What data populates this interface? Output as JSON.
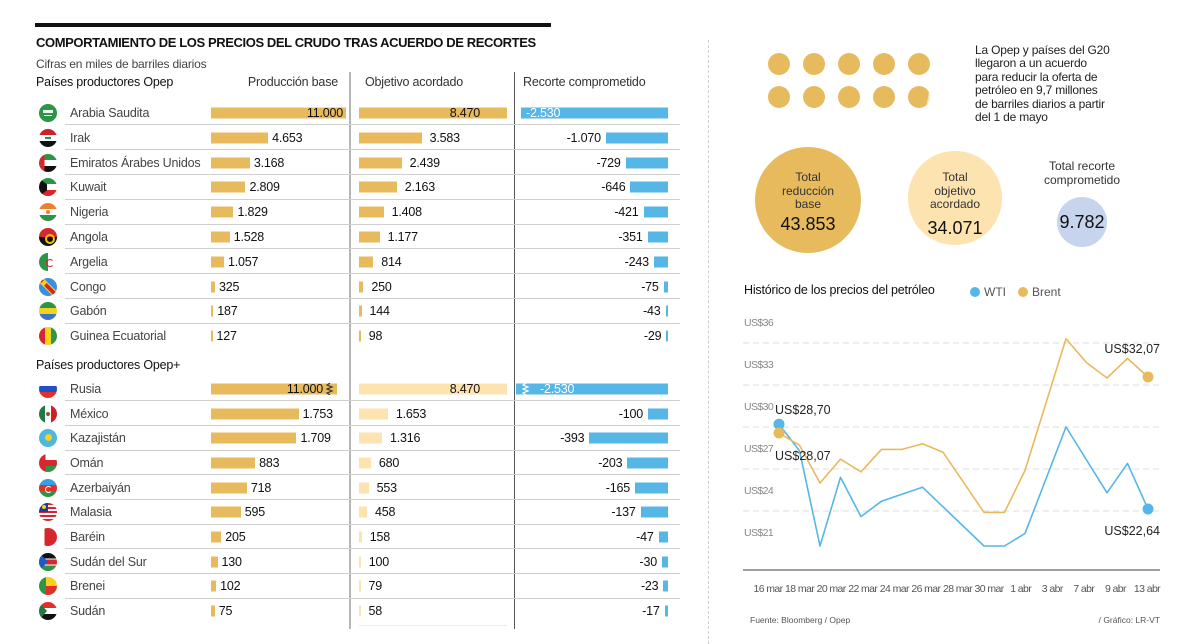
{
  "colors": {
    "gold": "#E8BA5E",
    "light": "#FDE3B0",
    "blue": "#56B7E6",
    "pale": "#C6D4EE"
  },
  "chart_data": [
    {
      "type": "bar",
      "title": "COMPORTAMIENTO DE LOS PRECIOS DEL CRUDO TRAS ACUERDO DE RECORTES",
      "subtitle": "Cifras en miles de barriles diarios",
      "columns": {
        "production": "Producción base",
        "target": "Objetivo acordado",
        "cut": "Recorte comprometido"
      },
      "sections": [
        {
          "name": "Países productores Opep",
          "rows": [
            {
              "country": "Arabia Saudita",
              "flag_icon": "flag-sa-icon",
              "production": 11000,
              "production_label": "11.000",
              "target": 8470,
              "target_label": "8.470",
              "cut": -2530,
              "cut_label": "-2.530"
            },
            {
              "country": "Irak",
              "flag_icon": "flag-iq-icon",
              "production": 4653,
              "production_label": "4.653",
              "target": 3583,
              "target_label": "3.583",
              "cut": -1070,
              "cut_label": "-1.070"
            },
            {
              "country": "Emiratos Árabes Unidos",
              "flag_icon": "flag-ae-icon",
              "production": 3168,
              "production_label": "3.168",
              "target": 2439,
              "target_label": "2.439",
              "cut": -729,
              "cut_label": "-729"
            },
            {
              "country": "Kuwait",
              "flag_icon": "flag-kw-icon",
              "production": 2809,
              "production_label": "2.809",
              "target": 2163,
              "target_label": "2.163",
              "cut": -646,
              "cut_label": "-646"
            },
            {
              "country": "Nigeria",
              "flag_icon": "flag-ne-icon",
              "production": 1829,
              "production_label": "1.829",
              "target": 1408,
              "target_label": "1.408",
              "cut": -421,
              "cut_label": "-421"
            },
            {
              "country": "Angola",
              "flag_icon": "flag-ao-icon",
              "production": 1528,
              "production_label": "1.528",
              "target": 1177,
              "target_label": "1.177",
              "cut": -351,
              "cut_label": "-351"
            },
            {
              "country": "Argelia",
              "flag_icon": "flag-dz-icon",
              "production": 1057,
              "production_label": "1.057",
              "target": 814,
              "target_label": "814",
              "cut": -243,
              "cut_label": "-243"
            },
            {
              "country": "Congo",
              "flag_icon": "flag-cd-icon",
              "production": 325,
              "production_label": "325",
              "target": 250,
              "target_label": "250",
              "cut": -75,
              "cut_label": "-75"
            },
            {
              "country": "Gabón",
              "flag_icon": "flag-ga-icon",
              "production": 187,
              "production_label": "187",
              "target": 144,
              "target_label": "144",
              "cut": -43,
              "cut_label": "-43"
            },
            {
              "country": "Guinea Ecuatorial",
              "flag_icon": "flag-gq-icon",
              "production": 127,
              "production_label": "127",
              "target": 98,
              "target_label": "98",
              "cut": -29,
              "cut_label": "-29"
            }
          ]
        },
        {
          "name": "Países productores Opep+",
          "rows": [
            {
              "country": "Rusia",
              "flag_icon": "flag-ru-icon",
              "production": 11000,
              "production_label": "11.000",
              "target": 8470,
              "target_label": "8.470",
              "cut": -2530,
              "cut_label": "-2.530"
            },
            {
              "country": "México",
              "flag_icon": "flag-mx-icon",
              "production": 1753,
              "production_label": "1.753",
              "target": 1653,
              "target_label": "1.653",
              "cut": -100,
              "cut_label": "-100"
            },
            {
              "country": "Kazajistán",
              "flag_icon": "flag-kz-icon",
              "production": 1709,
              "production_label": "1.709",
              "target": 1316,
              "target_label": "1.316",
              "cut": -393,
              "cut_label": "-393"
            },
            {
              "country": "Omán",
              "flag_icon": "flag-om-icon",
              "production": 883,
              "production_label": "883",
              "target": 680,
              "target_label": "680",
              "cut": -203,
              "cut_label": "-203"
            },
            {
              "country": "Azerbaiyán",
              "flag_icon": "flag-az-icon",
              "production": 718,
              "production_label": "718",
              "target": 553,
              "target_label": "553",
              "cut": -165,
              "cut_label": "-165"
            },
            {
              "country": "Malasia",
              "flag_icon": "flag-my-icon",
              "production": 595,
              "production_label": "595",
              "target": 458,
              "target_label": "458",
              "cut": -137,
              "cut_label": "-137"
            },
            {
              "country": "Baréin",
              "flag_icon": "flag-bh-icon",
              "production": 205,
              "production_label": "205",
              "target": 158,
              "target_label": "158",
              "cut": -47,
              "cut_label": "-47"
            },
            {
              "country": "Sudán del Sur",
              "flag_icon": "flag-ss-icon",
              "production": 130,
              "production_label": "130",
              "target": 100,
              "target_label": "100",
              "cut": -30,
              "cut_label": "-30"
            },
            {
              "country": "Brenei",
              "flag_icon": "flag-bj-icon",
              "production": 102,
              "production_label": "102",
              "target": 79,
              "target_label": "79",
              "cut": -23,
              "cut_label": "-23"
            },
            {
              "country": "Sudán",
              "flag_icon": "flag-sd-icon",
              "production": 75,
              "production_label": "75",
              "target": 58,
              "target_label": "58",
              "cut": -17,
              "cut_label": "-17"
            }
          ]
        }
      ]
    },
    {
      "type": "line",
      "title": "Histórico de los precios del petróleo",
      "xlabel": "",
      "ylabel": "",
      "legend": {
        "position": "top-right",
        "entries": [
          {
            "label": "WTI"
          },
          {
            "label": "Brent"
          }
        ]
      },
      "x_tick_labels": [
        "16 mar",
        "18 mar",
        "20 mar",
        "22 mar",
        "24 mar",
        "26 mar",
        "28 mar",
        "30 mar",
        "1 abr",
        "3 abr",
        "7 abr",
        "9 abr",
        "13 abr"
      ],
      "y_ticks": [
        36,
        33,
        30,
        27,
        24,
        21
      ],
      "y_tick_labels": [
        "US$36",
        "US$33",
        "US$30",
        "US$27",
        "US$24",
        "US$21"
      ],
      "ylim": [
        18.4,
        37
      ],
      "grid": "dashed horizontal",
      "series": [
        {
          "name": "WTI",
          "color": "#56B7E6",
          "values": [
            28.7,
            26.8,
            20.0,
            24.9,
            22.1,
            23.2,
            23.7,
            24.2,
            22.8,
            null,
            20.0,
            20.0,
            20.9,
            null,
            28.5,
            null,
            23.8,
            25.9,
            22.64
          ]
        },
        {
          "name": "Brent",
          "color": "#E8BA5E",
          "values": [
            28.07,
            27.2,
            24.5,
            26.2,
            25.3,
            26.9,
            26.9,
            27.3,
            26.7,
            null,
            22.4,
            22.4,
            25.4,
            null,
            34.8,
            33.1,
            32.0,
            33.4,
            32.07
          ]
        }
      ],
      "annotations": [
        {
          "series": "WTI",
          "point": 0,
          "text": "US$28,70",
          "placement": "above"
        },
        {
          "series": "Brent",
          "point": 0,
          "text": "US$28,07",
          "placement": "below"
        },
        {
          "series": "Brent",
          "point": 18,
          "text": "US$32,07",
          "placement": "above"
        },
        {
          "series": "WTI",
          "point": 18,
          "text": "US$22,64",
          "placement": "below"
        }
      ]
    }
  ],
  "summary": {
    "dots": {
      "count": 10,
      "value": 9.7
    },
    "intro_lines": [
      "La Opep y países del G20",
      "llegaron a un acuerdo",
      "para reducir la oferta de",
      "petróleo en 9,7 millones",
      "de barriles diarios a partir",
      "del 1 de mayo"
    ],
    "bubbles": [
      {
        "label_lines": [
          "Total",
          "reducción",
          "base"
        ],
        "value": 43853,
        "value_label": "43.853"
      },
      {
        "label_lines": [
          "Total",
          "objetivo",
          "acordado"
        ],
        "value": 34071,
        "value_label": "34.071"
      },
      {
        "label_lines": [
          "Total recorte",
          "comprometido"
        ],
        "value": 9782,
        "value_label": "9.782"
      }
    ]
  },
  "footer": {
    "source": "Fuente: Bloomberg / Opep",
    "credit": "/ Gráfico: LR-VT"
  }
}
